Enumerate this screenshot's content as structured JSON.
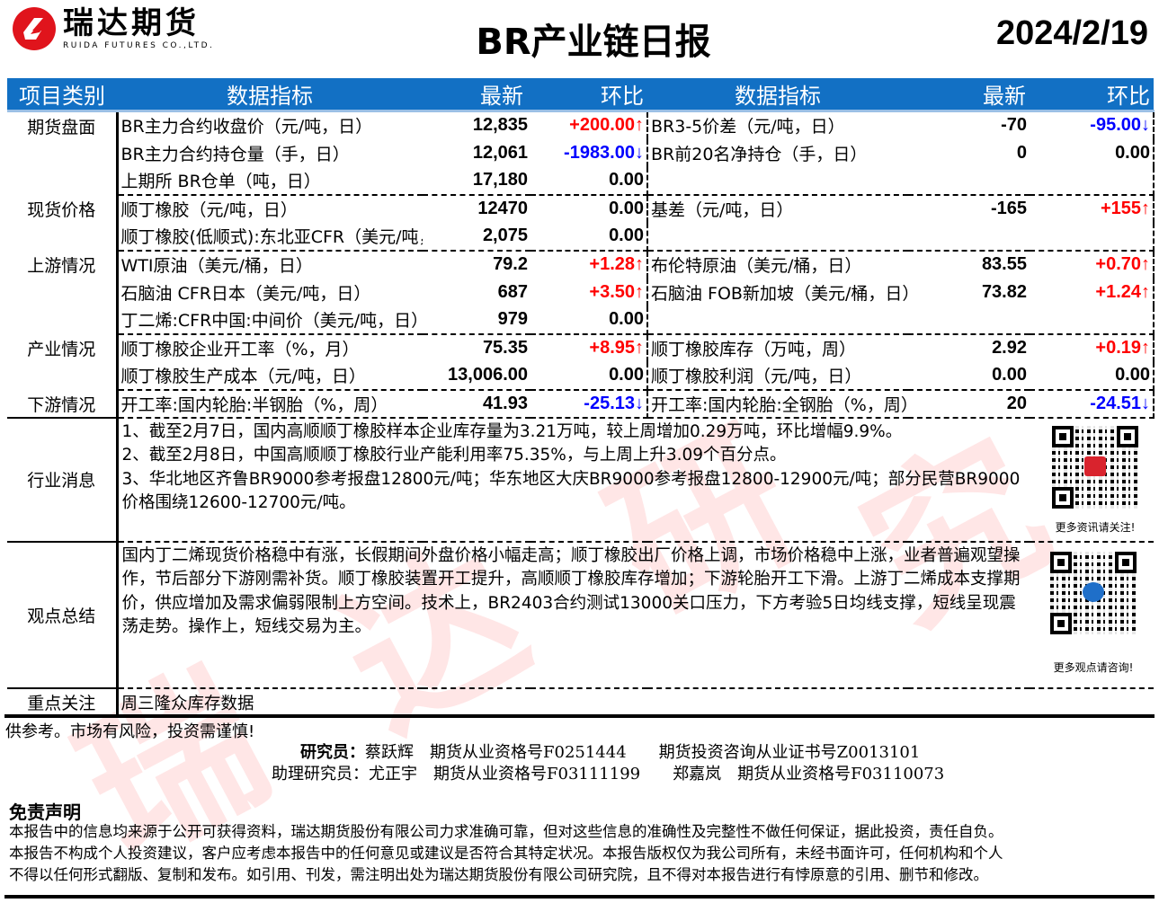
{
  "header": {
    "logo_cn": "瑞达期货",
    "logo_en": "RUIDA FUTURES CO.,LTD.",
    "title": "BR产业链日报",
    "date": "2024/2/19"
  },
  "colors": {
    "header_bg": "#1270c4",
    "up": "#ff0000",
    "down": "#0000ff"
  },
  "table": {
    "headers": [
      "项目类别",
      "数据指标",
      "最新",
      "环比",
      "数据指标",
      "最新",
      "环比"
    ],
    "sections": [
      {
        "category": "期货盘面",
        "rows": [
          {
            "l": {
              "name": "BR主力合约收盘价（元/吨，日）",
              "latest": "12,835",
              "change": "+200.00↑",
              "dir": "up"
            },
            "r": {
              "name": "BR3-5价差（元/吨，日）",
              "latest": "-70",
              "change": "-95.00↓",
              "dir": "down"
            }
          },
          {
            "l": {
              "name": "BR主力合约持仓量（手，日）",
              "latest": "12,061",
              "change": "-1983.00↓",
              "dir": "down"
            },
            "r": {
              "name": "BR前20名净持仓（手，日）",
              "latest": "0",
              "change": "0.00",
              "dir": ""
            }
          },
          {
            "l": {
              "name": "上期所 BR仓单（吨，日）",
              "latest": "17,180",
              "change": "0.00",
              "dir": ""
            },
            "r": {
              "name": "",
              "latest": "",
              "change": "",
              "dir": ""
            }
          }
        ]
      },
      {
        "category": "现货价格",
        "rows": [
          {
            "l": {
              "name": "顺丁橡胶（元/吨，日）",
              "latest": "12470",
              "change": "0.00",
              "dir": ""
            },
            "r": {
              "name": "基差（元/吨，日）",
              "latest": "-165",
              "change": "+155↑",
              "dir": "up"
            }
          },
          {
            "l": {
              "name": "顺丁橡胶(低顺式):东北亚CFR（美元/吨，",
              "latest": "2,075",
              "change": "0.00",
              "dir": ""
            },
            "r": {
              "name": "",
              "latest": "",
              "change": "",
              "dir": ""
            }
          }
        ]
      },
      {
        "category": "上游情况",
        "rows": [
          {
            "l": {
              "name": "WTI原油（美元/桶，日）",
              "latest": "79.2",
              "change": "+1.28↑",
              "dir": "up"
            },
            "r": {
              "name": "布伦特原油（美元/桶，日）",
              "latest": "83.55",
              "change": "+0.70↑",
              "dir": "up"
            }
          },
          {
            "l": {
              "name": "石脑油 CFR日本（美元/吨，日）",
              "latest": "687",
              "change": "+3.50↑",
              "dir": "up"
            },
            "r": {
              "name": "石脑油 FOB新加坡（美元/桶，日）",
              "latest": "73.82",
              "change": "+1.24↑",
              "dir": "up"
            }
          },
          {
            "l": {
              "name": "丁二烯:CFR中国:中间价（美元/吨，日）",
              "latest": "979",
              "change": "0.00",
              "dir": ""
            },
            "r": {
              "name": "",
              "latest": "",
              "change": "",
              "dir": ""
            }
          }
        ]
      },
      {
        "category": "产业情况",
        "rows": [
          {
            "l": {
              "name": "顺丁橡胶企业开工率（%，月）",
              "latest": "75.35",
              "change": "+8.95↑",
              "dir": "up"
            },
            "r": {
              "name": "顺丁橡胶库存（万吨，周）",
              "latest": "2.92",
              "change": "+0.19↑",
              "dir": "up"
            }
          },
          {
            "l": {
              "name": "顺丁橡胶生产成本（元/吨，日）",
              "latest": "13,006.00",
              "change": "0.00",
              "dir": ""
            },
            "r": {
              "name": "顺丁橡胶利润（元/吨，日）",
              "latest": "0.00",
              "change": "0.00",
              "dir": ""
            }
          }
        ]
      },
      {
        "category": "下游情况",
        "rows": [
          {
            "l": {
              "name": "开工率:国内轮胎:半钢胎（%，周）",
              "latest": "41.93",
              "change": "-25.13↓",
              "dir": "down"
            },
            "r": {
              "name": "开工率:国内轮胎:全钢胎（%，周）",
              "latest": "20",
              "change": "-24.51↓",
              "dir": "down"
            }
          }
        ]
      }
    ],
    "news": {
      "category": "行业消息",
      "lines": [
        "1、截至2月7日，国内高顺顺丁橡胶样本企业库存量为3.21万吨，较上周增加0.29万吨，环比增幅9.9%。",
        "2、截至2月8日，中国高顺顺丁橡胶行业产能利用率75.35%，与上周上升3.09个百分点。",
        "3、华北地区齐鲁BR9000参考报盘12800元/吨；华东地区大庆BR9000参考报盘12800-12900元/吨；部分民营BR9000价格围绕12600-12700元/吨。"
      ],
      "qr_caption": "更多资讯请关注!"
    },
    "summary": {
      "category": "观点总结",
      "text": "国内丁二烯现货价格稳中有涨，长假期间外盘价格小幅走高；顺丁橡胶出厂价格上调，市场价格稳中上涨，业者普遍观望操作，节后部分下游刚需补货。顺丁橡胶装置开工提升，高顺顺丁橡胶库存增加；下游轮胎开工下滑。上游丁二烯成本支撑期价，供应增加及需求偏弱限制上方空间。技术上，BR2403合约测试13000关口压力，下方考验5日均线支撑，短线呈现震荡走势。操作上，短线交易为主。",
      "qr_caption": "更多观点请咨询!"
    },
    "focus": {
      "category": "重点关注",
      "text": "周三隆众库存数据"
    }
  },
  "footer": {
    "risk": "供参考。市场有风险，投资需谨慎!",
    "researcher_label": "研究员：",
    "researcher_line": "蔡跃辉　期货从业资格号F0251444　　期货投资咨询从业证书号Z0013101",
    "assistant_line": "助理研究员：尤正宇　期货从业资格号F03111199　　郑嘉岚　期货从业资格号F03110073",
    "disclaimer_title": "免责声明",
    "disclaimer": [
      "本报告中的信息均来源于公开可获得资料，瑞达期货股份有限公司力求准确可靠，但对这些信息的准确性及完整性不做任何保证，据此投资，责任自负。",
      "本报告不构成个人投资建议，客户应考虑本报告中的任何意见或建议是否符合其特定状况。本报告版权仅为我公司所有，未经书面许可，任何机构和个人",
      "不得以任何形式翻版、复制和发布。如引用、刊发，需注明出处为瑞达期货股份有限公司研究院，且不得对本报告进行有悖原意的引用、删节和修改。"
    ],
    "watermark": "瑞达研究"
  }
}
